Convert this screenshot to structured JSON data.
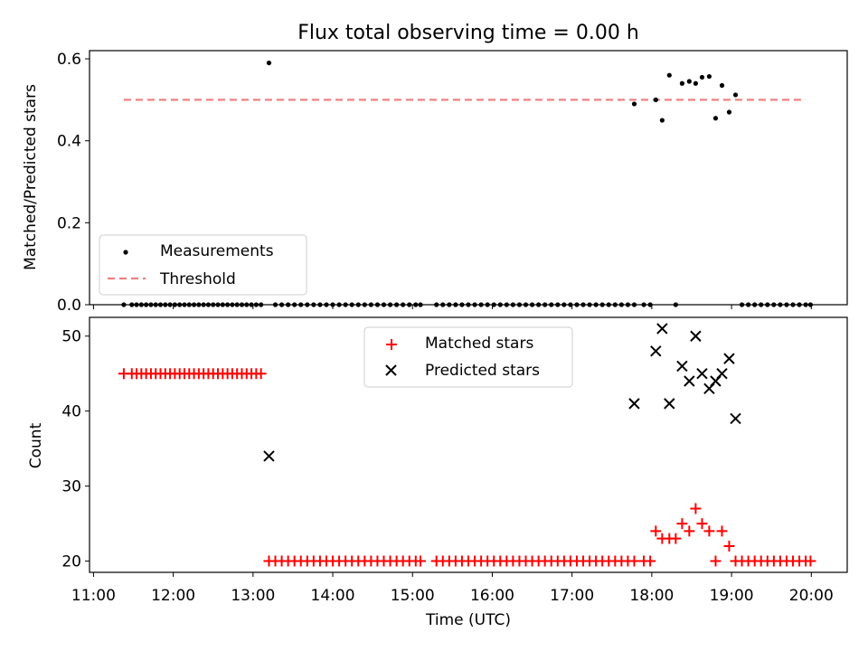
{
  "title": "Flux total observing time = 0.00 h",
  "chart_data": [
    {
      "type": "scatter",
      "ylabel": "Matched/Predicted stars",
      "xlim": [
        10.95,
        20.45
      ],
      "ylim": [
        0.0,
        0.62
      ],
      "yticks": [
        0.0,
        0.2,
        0.4,
        0.6
      ],
      "ytick_labels": [
        "0.0",
        "0.2",
        "0.4",
        "0.6"
      ],
      "legend_position": "lower-left",
      "series": [
        {
          "name": "Measurements",
          "color": "#000000",
          "points": [
            [
              11.38,
              0
            ],
            [
              11.48,
              0
            ],
            [
              11.54,
              0
            ],
            [
              11.6,
              0
            ],
            [
              11.66,
              0
            ],
            [
              11.72,
              0
            ],
            [
              11.78,
              0
            ],
            [
              11.84,
              0
            ],
            [
              11.9,
              0
            ],
            [
              11.96,
              0
            ],
            [
              12.02,
              0
            ],
            [
              12.08,
              0
            ],
            [
              12.14,
              0
            ],
            [
              12.2,
              0
            ],
            [
              12.26,
              0
            ],
            [
              12.32,
              0
            ],
            [
              12.38,
              0
            ],
            [
              12.44,
              0
            ],
            [
              12.5,
              0
            ],
            [
              12.56,
              0
            ],
            [
              12.62,
              0
            ],
            [
              12.68,
              0
            ],
            [
              12.74,
              0
            ],
            [
              12.8,
              0
            ],
            [
              12.86,
              0
            ],
            [
              12.92,
              0
            ],
            [
              12.98,
              0
            ],
            [
              13.04,
              0
            ],
            [
              13.1,
              0
            ],
            [
              13.2,
              0.59
            ],
            [
              13.28,
              0
            ],
            [
              13.36,
              0
            ],
            [
              13.44,
              0
            ],
            [
              13.52,
              0
            ],
            [
              13.6,
              0
            ],
            [
              13.68,
              0
            ],
            [
              13.76,
              0
            ],
            [
              13.84,
              0
            ],
            [
              13.92,
              0
            ],
            [
              14.0,
              0
            ],
            [
              14.08,
              0
            ],
            [
              14.16,
              0
            ],
            [
              14.24,
              0
            ],
            [
              14.32,
              0
            ],
            [
              14.4,
              0
            ],
            [
              14.48,
              0
            ],
            [
              14.56,
              0
            ],
            [
              14.64,
              0
            ],
            [
              14.72,
              0
            ],
            [
              14.8,
              0
            ],
            [
              14.88,
              0
            ],
            [
              14.96,
              0
            ],
            [
              15.04,
              0
            ],
            [
              15.1,
              0
            ],
            [
              15.3,
              0
            ],
            [
              15.38,
              0
            ],
            [
              15.46,
              0
            ],
            [
              15.54,
              0
            ],
            [
              15.62,
              0
            ],
            [
              15.7,
              0
            ],
            [
              15.78,
              0
            ],
            [
              15.86,
              0
            ],
            [
              15.94,
              0
            ],
            [
              16.02,
              0
            ],
            [
              16.1,
              0
            ],
            [
              16.18,
              0
            ],
            [
              16.26,
              0
            ],
            [
              16.34,
              0
            ],
            [
              16.42,
              0
            ],
            [
              16.5,
              0
            ],
            [
              16.58,
              0
            ],
            [
              16.66,
              0
            ],
            [
              16.74,
              0
            ],
            [
              16.82,
              0
            ],
            [
              16.9,
              0
            ],
            [
              16.98,
              0
            ],
            [
              17.06,
              0
            ],
            [
              17.14,
              0
            ],
            [
              17.22,
              0
            ],
            [
              17.3,
              0
            ],
            [
              17.38,
              0
            ],
            [
              17.46,
              0
            ],
            [
              17.54,
              0
            ],
            [
              17.62,
              0
            ],
            [
              17.7,
              0
            ],
            [
              17.78,
              0
            ],
            [
              17.9,
              0
            ],
            [
              17.98,
              0
            ],
            [
              17.78,
              0.49
            ],
            [
              18.05,
              0.5
            ],
            [
              18.13,
              0.45
            ],
            [
              18.22,
              0.56
            ],
            [
              18.3,
              0
            ],
            [
              18.38,
              0.54
            ],
            [
              18.47,
              0.545
            ],
            [
              18.55,
              0.54
            ],
            [
              18.63,
              0.555
            ],
            [
              18.72,
              0.557
            ],
            [
              18.8,
              0.455
            ],
            [
              18.88,
              0.535
            ],
            [
              18.97,
              0.47
            ],
            [
              19.05,
              0.512
            ],
            [
              19.13,
              0
            ],
            [
              19.21,
              0
            ],
            [
              19.29,
              0
            ],
            [
              19.37,
              0
            ],
            [
              19.45,
              0
            ],
            [
              19.53,
              0
            ],
            [
              19.61,
              0
            ],
            [
              19.69,
              0
            ],
            [
              19.77,
              0
            ],
            [
              19.85,
              0
            ],
            [
              19.93,
              0
            ],
            [
              19.99,
              0
            ]
          ]
        },
        {
          "name": "Threshold",
          "color": "#f08080",
          "x": [
            11.38,
            19.93
          ],
          "y": [
            0.5,
            0.5
          ]
        }
      ]
    },
    {
      "type": "scatter",
      "ylabel": "Count",
      "xlabel": "Time (UTC)",
      "xlim": [
        10.95,
        20.45
      ],
      "ylim": [
        18.5,
        52.5
      ],
      "yticks": [
        20,
        30,
        40,
        50
      ],
      "ytick_labels": [
        "20",
        "30",
        "40",
        "50"
      ],
      "xticks": [
        11,
        12,
        13,
        14,
        15,
        16,
        17,
        18,
        19,
        20
      ],
      "xtick_labels": [
        "11:00",
        "12:00",
        "13:00",
        "14:00",
        "15:00",
        "16:00",
        "17:00",
        "18:00",
        "19:00",
        "20:00"
      ],
      "legend_position": "upper-center",
      "series": [
        {
          "name": "Matched stars",
          "color": "#ff0000",
          "points": [
            [
              11.38,
              45
            ],
            [
              11.48,
              45
            ],
            [
              11.54,
              45
            ],
            [
              11.6,
              45
            ],
            [
              11.66,
              45
            ],
            [
              11.72,
              45
            ],
            [
              11.78,
              45
            ],
            [
              11.84,
              45
            ],
            [
              11.9,
              45
            ],
            [
              11.96,
              45
            ],
            [
              12.02,
              45
            ],
            [
              12.08,
              45
            ],
            [
              12.14,
              45
            ],
            [
              12.2,
              45
            ],
            [
              12.26,
              45
            ],
            [
              12.32,
              45
            ],
            [
              12.38,
              45
            ],
            [
              12.44,
              45
            ],
            [
              12.5,
              45
            ],
            [
              12.56,
              45
            ],
            [
              12.62,
              45
            ],
            [
              12.68,
              45
            ],
            [
              12.74,
              45
            ],
            [
              12.8,
              45
            ],
            [
              12.86,
              45
            ],
            [
              12.92,
              45
            ],
            [
              12.98,
              45
            ],
            [
              13.04,
              45
            ],
            [
              13.1,
              45
            ],
            [
              13.2,
              20
            ],
            [
              13.28,
              20
            ],
            [
              13.36,
              20
            ],
            [
              13.44,
              20
            ],
            [
              13.52,
              20
            ],
            [
              13.6,
              20
            ],
            [
              13.68,
              20
            ],
            [
              13.76,
              20
            ],
            [
              13.84,
              20
            ],
            [
              13.92,
              20
            ],
            [
              14.0,
              20
            ],
            [
              14.08,
              20
            ],
            [
              14.16,
              20
            ],
            [
              14.24,
              20
            ],
            [
              14.32,
              20
            ],
            [
              14.4,
              20
            ],
            [
              14.48,
              20
            ],
            [
              14.56,
              20
            ],
            [
              14.64,
              20
            ],
            [
              14.72,
              20
            ],
            [
              14.8,
              20
            ],
            [
              14.88,
              20
            ],
            [
              14.96,
              20
            ],
            [
              15.04,
              20
            ],
            [
              15.1,
              20
            ],
            [
              15.3,
              20
            ],
            [
              15.38,
              20
            ],
            [
              15.46,
              20
            ],
            [
              15.54,
              20
            ],
            [
              15.62,
              20
            ],
            [
              15.7,
              20
            ],
            [
              15.78,
              20
            ],
            [
              15.86,
              20
            ],
            [
              15.94,
              20
            ],
            [
              16.02,
              20
            ],
            [
              16.1,
              20
            ],
            [
              16.18,
              20
            ],
            [
              16.26,
              20
            ],
            [
              16.34,
              20
            ],
            [
              16.42,
              20
            ],
            [
              16.5,
              20
            ],
            [
              16.58,
              20
            ],
            [
              16.66,
              20
            ],
            [
              16.74,
              20
            ],
            [
              16.82,
              20
            ],
            [
              16.9,
              20
            ],
            [
              16.98,
              20
            ],
            [
              17.06,
              20
            ],
            [
              17.14,
              20
            ],
            [
              17.22,
              20
            ],
            [
              17.3,
              20
            ],
            [
              17.38,
              20
            ],
            [
              17.46,
              20
            ],
            [
              17.54,
              20
            ],
            [
              17.62,
              20
            ],
            [
              17.7,
              20
            ],
            [
              17.78,
              20
            ],
            [
              17.9,
              20
            ],
            [
              17.98,
              20
            ],
            [
              18.05,
              24
            ],
            [
              18.13,
              23
            ],
            [
              18.22,
              23
            ],
            [
              18.3,
              23
            ],
            [
              18.38,
              25
            ],
            [
              18.47,
              24
            ],
            [
              18.55,
              27
            ],
            [
              18.63,
              25
            ],
            [
              18.72,
              24
            ],
            [
              18.8,
              20
            ],
            [
              18.88,
              24
            ],
            [
              18.97,
              22
            ],
            [
              19.05,
              20
            ],
            [
              19.13,
              20
            ],
            [
              19.21,
              20
            ],
            [
              19.29,
              20
            ],
            [
              19.37,
              20
            ],
            [
              19.45,
              20
            ],
            [
              19.53,
              20
            ],
            [
              19.61,
              20
            ],
            [
              19.69,
              20
            ],
            [
              19.77,
              20
            ],
            [
              19.85,
              20
            ],
            [
              19.93,
              20
            ],
            [
              19.99,
              20
            ]
          ]
        },
        {
          "name": "Predicted stars",
          "color": "#000000",
          "points": [
            [
              13.2,
              34
            ],
            [
              17.78,
              41
            ],
            [
              18.05,
              48
            ],
            [
              18.13,
              51
            ],
            [
              18.22,
              41
            ],
            [
              18.38,
              46
            ],
            [
              18.47,
              44
            ],
            [
              18.55,
              50
            ],
            [
              18.63,
              45
            ],
            [
              18.72,
              43
            ],
            [
              18.8,
              44
            ],
            [
              18.88,
              45
            ],
            [
              18.97,
              47
            ],
            [
              19.05,
              39
            ]
          ]
        }
      ]
    }
  ]
}
